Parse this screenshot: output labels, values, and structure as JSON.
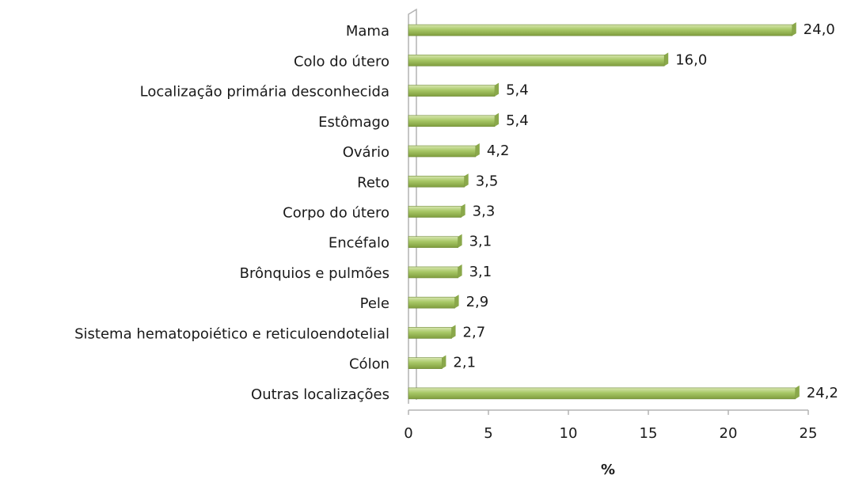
{
  "chart_data": {
    "type": "bar",
    "orientation": "horizontal",
    "x_label": "%",
    "categories": [
      "Mama",
      "Colo do útero",
      "Localização primária desconhecida",
      "Estômago",
      "Ovário",
      "Reto",
      "Corpo do útero",
      "Encéfalo",
      "Brônquios e pulmões",
      "Pele",
      "Sistema hematopoiético e reticuloendotelial",
      "Cólon",
      "Outras localizações"
    ],
    "values": [
      24.0,
      16.0,
      5.4,
      5.4,
      4.2,
      3.5,
      3.3,
      3.1,
      3.1,
      2.9,
      2.7,
      2.1,
      24.2
    ],
    "value_labels": [
      "24,0",
      "16,0",
      "5,4",
      "5,4",
      "4,2",
      "3,5",
      "3,3",
      "3,1",
      "3,1",
      "2,9",
      "2,7",
      "2,1",
      "24,2"
    ],
    "color": "#9bbb59",
    "xlim": [
      0,
      25
    ],
    "xticks": [
      0,
      5,
      10,
      15,
      20,
      25
    ],
    "grid": false
  }
}
